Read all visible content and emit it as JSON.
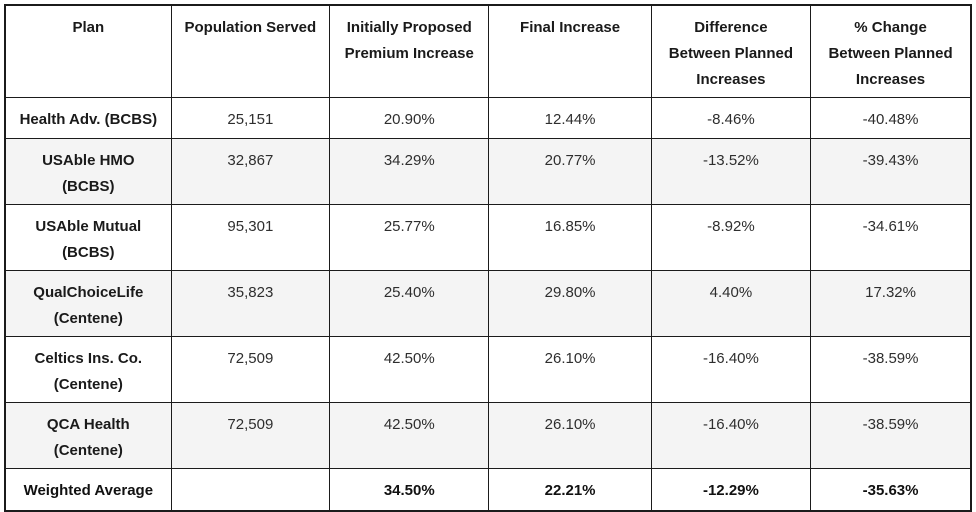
{
  "colors": {
    "border": "#1b1b1b",
    "background": "#ffffff",
    "row_alt_background": "#f4f4f4",
    "header_text": "#1a1a1a",
    "cell_text": "#2e2e2e"
  },
  "chart_data": {
    "type": "table",
    "title": "",
    "columns": [
      "Plan",
      "Population Served",
      "Initially Proposed\nPremium Increase",
      "Final Increase",
      "Difference\nBetween Planned\nIncreases",
      "% Change\nBetween Planned\nIncreases"
    ],
    "rows": [
      [
        "Health Adv. (BCBS)",
        "25,151",
        "20.90%",
        "12.44%",
        "-8.46%",
        "-40.48%"
      ],
      [
        "USAble HMO\n(BCBS)",
        "32,867",
        "34.29%",
        "20.77%",
        "-13.52%",
        "-39.43%"
      ],
      [
        "USAble Mutual\n(BCBS)",
        "95,301",
        "25.77%",
        "16.85%",
        "-8.92%",
        "-34.61%"
      ],
      [
        "QualChoiceLife\n(Centene)",
        "35,823",
        "25.40%",
        "29.80%",
        "4.40%",
        "17.32%"
      ],
      [
        "Celtics Ins. Co.\n(Centene)",
        "72,509",
        "42.50%",
        "26.10%",
        "-16.40%",
        "-38.59%"
      ],
      [
        "QCA Health\n(Centene)",
        "72,509",
        "42.50%",
        "26.10%",
        "-16.40%",
        "-38.59%"
      ],
      [
        "Weighted Average",
        "",
        "34.50%",
        "22.21%",
        "-12.29%",
        "-35.63%"
      ]
    ]
  }
}
